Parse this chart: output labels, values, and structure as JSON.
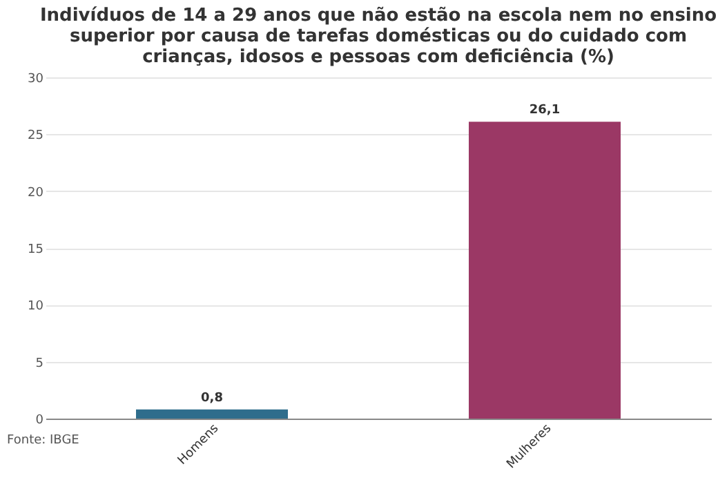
{
  "chart_data": {
    "type": "bar",
    "title": "Indivíduos de 14 a 29 anos que não estão na escola nem no ensino superior por causa de tarefas domésticas ou do cuidado com crianças, idosos e pessoas com deficiência (%)",
    "categories": [
      "Homens",
      "Mulheres"
    ],
    "values": [
      0.8,
      26.1
    ],
    "colors": [
      "#2f6d8c",
      "#9b3865"
    ],
    "value_labels": [
      "0,8",
      "26,1"
    ],
    "ylim": [
      0,
      30
    ],
    "yticks": [
      0,
      5,
      10,
      15,
      20,
      25,
      30
    ],
    "grid": "y",
    "annotations": [
      "Fonte: IBGE"
    ]
  }
}
